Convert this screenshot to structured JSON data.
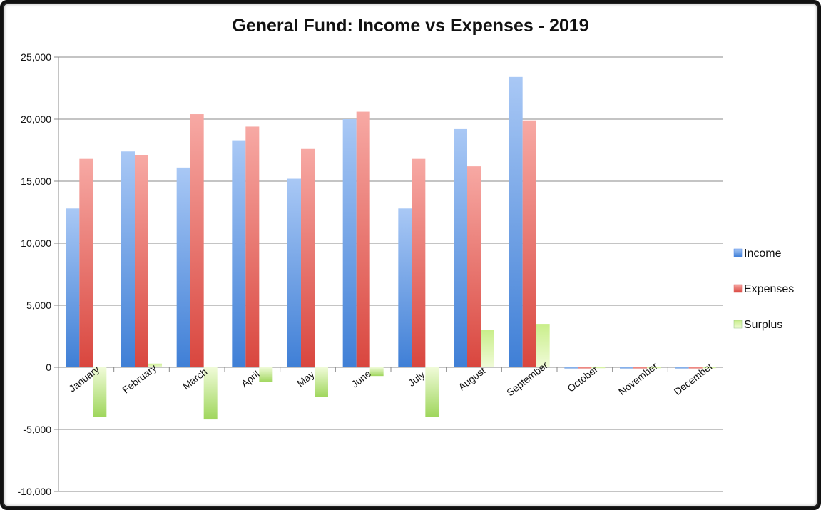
{
  "chart_data": {
    "type": "bar",
    "title": "General Fund: Income vs Expenses - 2019",
    "xlabel": "",
    "ylabel": "",
    "ylim": [
      -10000,
      25000
    ],
    "yticks": [
      "-10,000",
      "-5,000",
      "0",
      "5,000",
      "10,000",
      "15,000",
      "20,000",
      "25,000"
    ],
    "ytick_values": [
      -10000,
      -5000,
      0,
      5000,
      10000,
      15000,
      20000,
      25000
    ],
    "categories": [
      "January",
      "February",
      "March",
      "April",
      "May",
      "June",
      "July",
      "August",
      "September",
      "October",
      "November",
      "December"
    ],
    "grid": true,
    "legend_position": "right",
    "series": [
      {
        "name": "Income",
        "color": "#4a86e8",
        "values": [
          12800,
          17400,
          16100,
          18300,
          15200,
          20000,
          12800,
          19200,
          23400,
          0,
          0,
          0
        ]
      },
      {
        "name": "Expenses",
        "color": "#e06666",
        "values": [
          16800,
          17100,
          20400,
          19400,
          17600,
          20600,
          16800,
          16200,
          19900,
          0,
          0,
          0
        ]
      },
      {
        "name": "Surplus",
        "color": "#93c47d",
        "values": [
          -4000,
          300,
          -4200,
          -1200,
          -2400,
          -700,
          -4000,
          3000,
          3500,
          0,
          0,
          0
        ]
      }
    ]
  }
}
